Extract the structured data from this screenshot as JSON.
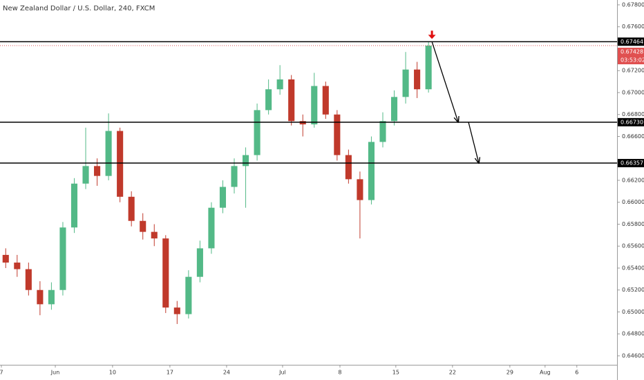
{
  "chart_data": {
    "type": "candlestick",
    "title": "New Zealand Dollar / U.S. Dollar, 240, FXCM",
    "x": [
      0,
      1,
      2,
      3,
      4,
      5,
      6,
      7,
      8,
      9,
      10,
      11,
      12,
      13,
      14,
      15,
      16,
      17,
      18,
      19,
      20,
      21,
      22,
      23,
      24,
      25,
      26,
      27,
      28,
      29,
      30,
      31,
      32,
      33,
      34,
      35,
      36,
      37
    ],
    "open": [
      0.6552,
      0.6545,
      0.6539,
      0.652,
      0.6507,
      0.652,
      0.6577,
      0.6617,
      0.6633,
      0.6624,
      0.6665,
      0.6605,
      0.6583,
      0.6573,
      0.6567,
      0.6504,
      0.6498,
      0.6532,
      0.6558,
      0.6595,
      0.6614,
      0.6633,
      0.6643,
      0.6684,
      0.6703,
      0.6712,
      0.6674,
      0.6671,
      0.6706,
      0.668,
      0.6643,
      0.6621,
      0.6602,
      0.6655,
      0.6674,
      0.6696,
      0.6721,
      0.6703
    ],
    "high": [
      0.6558,
      0.6552,
      0.6545,
      0.6528,
      0.6527,
      0.6582,
      0.6622,
      0.6668,
      0.664,
      0.6681,
      0.6668,
      0.661,
      0.659,
      0.658,
      0.657,
      0.651,
      0.6538,
      0.6565,
      0.66,
      0.662,
      0.664,
      0.665,
      0.669,
      0.6712,
      0.6725,
      0.6716,
      0.668,
      0.6718,
      0.671,
      0.6684,
      0.6648,
      0.6628,
      0.666,
      0.6682,
      0.6702,
      0.6737,
      0.6728,
      0.67464
    ],
    "low": [
      0.654,
      0.6532,
      0.6515,
      0.6497,
      0.6502,
      0.6515,
      0.6572,
      0.6612,
      0.6615,
      0.662,
      0.66,
      0.6578,
      0.6566,
      0.656,
      0.6499,
      0.6489,
      0.6494,
      0.6527,
      0.6553,
      0.659,
      0.6608,
      0.6595,
      0.6638,
      0.668,
      0.6698,
      0.667,
      0.666,
      0.6668,
      0.6676,
      0.6638,
      0.6617,
      0.6567,
      0.6598,
      0.665,
      0.667,
      0.669,
      0.6695,
      0.67
    ],
    "close": [
      0.6545,
      0.6539,
      0.652,
      0.6507,
      0.652,
      0.6577,
      0.6617,
      0.6633,
      0.6624,
      0.6665,
      0.6605,
      0.6583,
      0.6573,
      0.6567,
      0.6504,
      0.6498,
      0.6532,
      0.6558,
      0.6595,
      0.6614,
      0.6633,
      0.6643,
      0.6684,
      0.6703,
      0.6712,
      0.6674,
      0.6671,
      0.6706,
      0.668,
      0.6643,
      0.6621,
      0.6602,
      0.6655,
      0.6674,
      0.6696,
      0.6721,
      0.6703,
      0.67428
    ],
    "up_color": "#53b987",
    "down_color": "#c0392b",
    "xlim": [
      -0.5,
      53.5
    ],
    "xticks": [
      {
        "value": -0.38,
        "label": "7"
      },
      {
        "value": 4.34,
        "label": "Jun"
      },
      {
        "value": 9.35,
        "label": "10"
      },
      {
        "value": 14.37,
        "label": "17"
      },
      {
        "value": 19.33,
        "label": "24"
      },
      {
        "value": 24.23,
        "label": "Jul"
      },
      {
        "value": 29.25,
        "label": "8"
      },
      {
        "value": 34.14,
        "label": "15"
      },
      {
        "value": 39.1,
        "label": "22"
      },
      {
        "value": 44.12,
        "label": "29"
      },
      {
        "value": 47.2,
        "label": "Aug"
      },
      {
        "value": 49.98,
        "label": "6"
      }
    ],
    "ylim": [
      0.64518,
      0.67844
    ],
    "yticks": [
      {
        "value": 0.678,
        "label": "0.67800"
      },
      {
        "value": 0.676,
        "label": "0.67600"
      },
      {
        "value": 0.672,
        "label": "0.67200"
      },
      {
        "value": 0.67,
        "label": "0.67000"
      },
      {
        "value": 0.668,
        "label": "0.66800"
      },
      {
        "value": 0.666,
        "label": "0.66600"
      },
      {
        "value": 0.662,
        "label": "0.66200"
      },
      {
        "value": 0.66,
        "label": "0.66000"
      },
      {
        "value": 0.658,
        "label": "0.65800"
      },
      {
        "value": 0.656,
        "label": "0.65600"
      },
      {
        "value": 0.654,
        "label": "0.65400"
      },
      {
        "value": 0.652,
        "label": "0.65200"
      },
      {
        "value": 0.65,
        "label": "0.65000"
      },
      {
        "value": 0.648,
        "label": "0.64800"
      },
      {
        "value": 0.646,
        "label": "0.64600"
      }
    ],
    "levels": [
      {
        "value": 0.67464,
        "label": "0.67464"
      },
      {
        "value": 0.6673,
        "label": "0.66730"
      },
      {
        "value": 0.66357,
        "label": "0.66357"
      }
    ],
    "current_price": {
      "value": 0.67428,
      "label": "0.67428",
      "countdown": "03:53:02"
    },
    "arrows": [
      {
        "x": [
          37.3,
          39.6
        ],
        "y": [
          0.67464,
          0.6673
        ]
      },
      {
        "x": [
          40.5,
          41.4
        ],
        "y": [
          0.6673,
          0.66357
        ]
      }
    ],
    "grid": false
  }
}
